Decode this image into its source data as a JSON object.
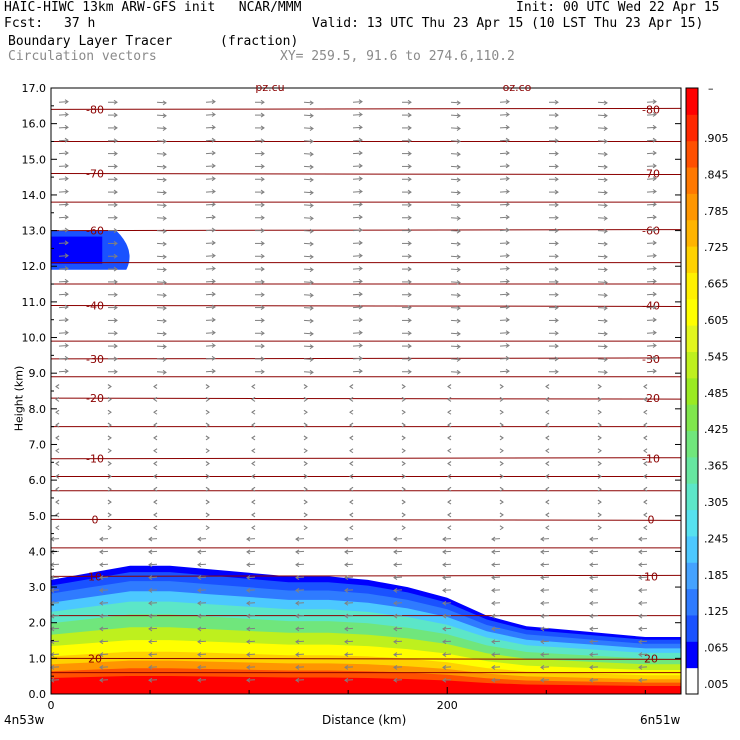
{
  "header": {
    "title_line": "HAIC-HIWC 13km ARW-GFS init   NCAR/MMM",
    "init": "Init: 00 UTC Wed 22 Apr 15",
    "fcst_label": "Fcst:",
    "fcst_value": "37 h",
    "valid": "Valid: 13 UTC Thu 23 Apr 15 (10 LST Thu 23 Apr 15)",
    "field_name": "Boundary Layer Tracer",
    "field_units": "(fraction)",
    "vector_label": "Circulation vectors",
    "xy": "XY= 259.5, 91.6 to 274.6,110.2"
  },
  "colors": {
    "contour": "#8b0000",
    "vector": "#808080",
    "colorbar": [
      "#ffffff",
      "#0000ff",
      "#1a52ff",
      "#2f7bff",
      "#44a2ff",
      "#4cc8ff",
      "#56e1ef",
      "#5ce6c8",
      "#66e6a0",
      "#70e67c",
      "#80e64c",
      "#9aea22",
      "#bef01e",
      "#e2f61e",
      "#ffff00",
      "#fff000",
      "#ffd200",
      "#ffb400",
      "#ff9600",
      "#ff7800",
      "#ff5000",
      "#ff2800",
      "#ff0000"
    ]
  },
  "chart_data": {
    "type": "heatmap",
    "title": "Boundary Layer Tracer",
    "units": "(fraction)",
    "xlabel": "Distance (km)",
    "ylabel": "Height (km)",
    "x_ticks": [
      "0",
      "200"
    ],
    "x_endpoints": [
      "4n53w",
      "6n51w"
    ],
    "ylim": [
      0,
      17
    ],
    "y_ticks": [
      "0.0",
      "1.0",
      "2.0",
      "3.0",
      "4.0",
      "5.0",
      "6.0",
      "7.0",
      "8.0",
      "9.0",
      "10.0",
      "11.0",
      "12.0",
      "13.0",
      "14.0",
      "15.0",
      "16.0",
      "17.0"
    ],
    "colorbar_labels": [
      ".005",
      ".065",
      ".125",
      ".185",
      ".245",
      ".305",
      ".365",
      ".425",
      ".485",
      ".545",
      ".605",
      ".665",
      ".725",
      ".785",
      ".845",
      ".905"
    ],
    "colorbar_top_label": "–",
    "tracer_boundary": {
      "distance_km": [
        0,
        20,
        40,
        60,
        80,
        100,
        120,
        140,
        160,
        180,
        200,
        220,
        240,
        260,
        280,
        300
      ],
      "top_height_km": [
        3.2,
        3.4,
        3.6,
        3.6,
        3.5,
        3.4,
        3.3,
        3.3,
        3.2,
        3.0,
        2.7,
        2.2,
        1.9,
        1.8,
        1.7,
        1.6
      ]
    },
    "upper_patch": {
      "distance_km": [
        0,
        40
      ],
      "height_range_km": [
        11.9,
        13.0
      ]
    },
    "contours": [
      {
        "label": "-80",
        "height_km": 16.4
      },
      {
        "label": "-70",
        "height_km": 14.6
      },
      {
        "label": "-60",
        "height_km": 13.0
      },
      {
        "label": "-40",
        "height_km": 10.9
      },
      {
        "label": "-30",
        "height_km": 9.4
      },
      {
        "label": "-20",
        "height_km": 8.3
      },
      {
        "label": "-10",
        "height_km": 6.6
      },
      {
        "label": "0",
        "height_km": 4.9
      },
      {
        "label": "10",
        "height_km": 3.3
      },
      {
        "label": "20",
        "height_km": 1.0
      }
    ],
    "top_labels": [
      "pz.cu",
      "oz.co"
    ]
  }
}
